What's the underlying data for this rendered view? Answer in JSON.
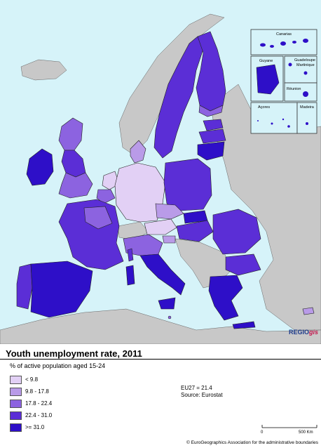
{
  "title": "Youth unemployment rate, 2011",
  "subtitle": "% of active population aged 15-24",
  "legend": [
    {
      "label": "< 9.8",
      "color": "#e2d0f5"
    },
    {
      "label": "9.8 - 17.8",
      "color": "#b99be8"
    },
    {
      "label": "17.8 - 22.4",
      "color": "#8c63e0"
    },
    {
      "label": "22.4 - 31.0",
      "color": "#5b2ed6"
    },
    {
      "label": ">= 31.0",
      "color": "#2e0fc8"
    }
  ],
  "stats": {
    "eu_value": "EU27 = 21.4",
    "source": "Source: Eurostat"
  },
  "insets": [
    "Canarias",
    "Guyane",
    "Guadeloupe",
    "Martinique",
    "Réunion",
    "Açores",
    "Madeira"
  ],
  "scale": {
    "start": "0",
    "end": "500 Km"
  },
  "logo": {
    "main": "REGIO",
    "suffix": "gis"
  },
  "copyright": "© EuroGeographics Association for the administrative boundaries",
  "colors": {
    "sea": "#d6f3f9",
    "non_eu_land": "#c8c8c8",
    "border": "#111111"
  }
}
